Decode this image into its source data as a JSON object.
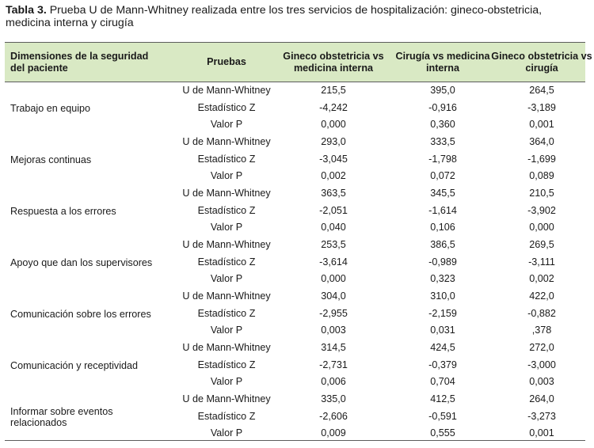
{
  "caption": {
    "label": "Tabla 3.",
    "text": " Prueba U de Mann-Whitney realizada entre los tres servicios de hospitalización: gineco-obstetricia, medicina interna y cirugía"
  },
  "headers": {
    "dimension": "Dimensiones de la seguridad del paciente",
    "pruebas": "Pruebas",
    "col1": "Gineco obstetricia vs medicina interna",
    "col2": "Cirugía vs medicina interna",
    "col3": "Gineco obstetricia vs cirugía"
  },
  "groups": [
    {
      "dimension": "Trabajo en equipo",
      "rows": [
        {
          "test": "U de Mann-Whitney",
          "v1": "215,5",
          "v2": "395,0",
          "v3": "264,5"
        },
        {
          "test": "Estadístico Z",
          "v1": "-4,242",
          "v2": "-0,916",
          "v3": "-3,189"
        },
        {
          "test": "Valor P",
          "v1": "0,000",
          "v2": "0,360",
          "v3": "0,001"
        }
      ]
    },
    {
      "dimension": "Mejoras continuas",
      "rows": [
        {
          "test": "U de Mann-Whitney",
          "v1": "293,0",
          "v2": "333,5",
          "v3": "364,0"
        },
        {
          "test": "Estadístico Z",
          "v1": "-3,045",
          "v2": "-1,798",
          "v3": "-1,699"
        },
        {
          "test": "Valor P",
          "v1": "0,002",
          "v2": "0,072",
          "v3": "0,089"
        }
      ]
    },
    {
      "dimension": "Respuesta a los errores",
      "rows": [
        {
          "test": "U de Mann-Whitney",
          "v1": "363,5",
          "v2": "345,5",
          "v3": "210,5"
        },
        {
          "test": "Estadístico Z",
          "v1": "-2,051",
          "v2": "-1,614",
          "v3": "-3,902"
        },
        {
          "test": "Valor P",
          "v1": "0,040",
          "v2": "0,106",
          "v3": "0,000"
        }
      ]
    },
    {
      "dimension": "Apoyo que dan los supervisores",
      "rows": [
        {
          "test": "U de Mann-Whitney",
          "v1": "253,5",
          "v2": "386,5",
          "v3": "269,5"
        },
        {
          "test": "Estadístico Z",
          "v1": "-3,614",
          "v2": "-0,989",
          "v3": "-3,111"
        },
        {
          "test": "Valor P",
          "v1": "0,000",
          "v2": "0,323",
          "v3": "0,002"
        }
      ]
    },
    {
      "dimension": "Comunicación sobre los errores",
      "rows": [
        {
          "test": "U de Mann-Whitney",
          "v1": "304,0",
          "v2": "310,0",
          "v3": "422,0"
        },
        {
          "test": "Estadístico Z",
          "v1": "-2,955",
          "v2": "-2,159",
          "v3": "-0,882"
        },
        {
          "test": "Valor P",
          "v1": "0,003",
          "v2": "0,031",
          "v3": ",378"
        }
      ]
    },
    {
      "dimension": "Comunicación y receptividad",
      "rows": [
        {
          "test": "U de Mann-Whitney",
          "v1": "314,5",
          "v2": "424,5",
          "v3": "272,0"
        },
        {
          "test": "Estadístico Z",
          "v1": "-2,731",
          "v2": "-0,379",
          "v3": "-3,000"
        },
        {
          "test": "Valor P",
          "v1": "0,006",
          "v2": "0,704",
          "v3": "0,003"
        }
      ]
    },
    {
      "dimension": "Informar sobre eventos relacionados",
      "rows": [
        {
          "test": "U de Mann-Whitney",
          "v1": "335,0",
          "v2": "412,5",
          "v3": "264,0"
        },
        {
          "test": "Estadístico Z",
          "v1": "-2,606",
          "v2": "-0,591",
          "v3": "-3,273"
        },
        {
          "test": "Valor P",
          "v1": "0,009",
          "v2": "0,555",
          "v3": "0,001"
        }
      ]
    }
  ],
  "colors": {
    "header_bg": "#d9e9c4",
    "rule": "#5c5c5c"
  }
}
